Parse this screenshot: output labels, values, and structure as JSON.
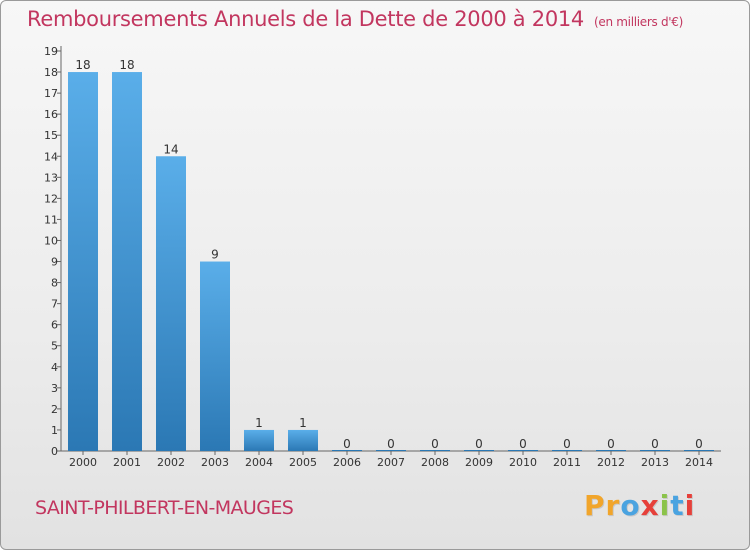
{
  "header": {
    "title": "Remboursements Annuels de la Dette de 2000 à 2014",
    "subtitle": "(en milliers d'€)"
  },
  "footer": {
    "commune": "SAINT-PHILBERT-EN-MAUGES",
    "logo_letters": [
      "P",
      "r",
      "o",
      "x",
      "i",
      "t",
      "i"
    ]
  },
  "colors": {
    "title": "#c2365f",
    "bar_light": "#5aaee9",
    "bar_dark": "#2b78b4",
    "logo": [
      "#f1a52b",
      "#f1a52b",
      "#4aa3e0",
      "#e6403a",
      "#8bc34a",
      "#4aa3e0",
      "#e6403a"
    ]
  },
  "chart_data": {
    "type": "bar",
    "title": "Remboursements Annuels de la Dette de 2000 à 2014",
    "subtitle": "(en milliers d'€)",
    "categories": [
      "2000",
      "2001",
      "2002",
      "2003",
      "2004",
      "2005",
      "2006",
      "2007",
      "2008",
      "2009",
      "2010",
      "2011",
      "2012",
      "2013",
      "2014"
    ],
    "values": [
      18,
      18,
      14,
      9,
      1,
      1,
      0,
      0,
      0,
      0,
      0,
      0,
      0,
      0,
      0
    ],
    "data_labels": [
      "18",
      "18",
      "14",
      "9",
      "1",
      "1",
      "0",
      "0",
      "0",
      "0",
      "0",
      "0",
      "0",
      "0",
      "0"
    ],
    "yticks": [
      0,
      1,
      2,
      3,
      4,
      5,
      6,
      7,
      8,
      9,
      10,
      11,
      12,
      13,
      14,
      15,
      16,
      17,
      18,
      19
    ],
    "ylim": [
      0,
      19
    ],
    "xlabel": "",
    "ylabel": "",
    "grid": false,
    "legend": "none"
  }
}
